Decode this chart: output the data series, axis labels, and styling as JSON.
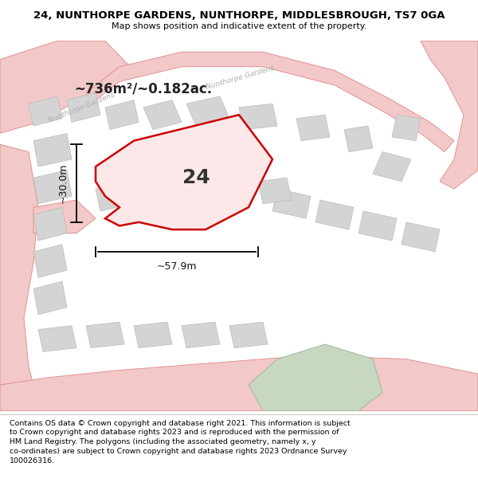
{
  "title": "24, NUNTHORPE GARDENS, NUNTHORPE, MIDDLESBROUGH, TS7 0GA",
  "subtitle": "Map shows position and indicative extent of the property.",
  "footer": "Contains OS data © Crown copyright and database right 2021. This information is subject\nto Crown copyright and database rights 2023 and is reproduced with the permission of\nHM Land Registry. The polygons (including the associated geometry, namely x, y\nco-ordinates) are subject to Crown copyright and database rights 2023 Ordnance Survey\n100026316.",
  "map_bg": "#f7f7f7",
  "road_fill": "#f2c8c8",
  "road_edge": "#e08888",
  "building_fill": "#d4d4d4",
  "building_edge": "#bbbbbb",
  "prop_fill": "#fce8e8",
  "prop_edge": "#cc0000",
  "green_fill": "#c8d8c0",
  "green_edge": "#a0b898",
  "area_text": "~736m²/~0.182ac.",
  "label_24": "24",
  "dim_width": "~57.9m",
  "dim_height": "~30.0m",
  "street1": "Nunthorpe Gardens",
  "street2": "Nunthorpe Gardens",
  "title_fontsize": 9.5,
  "subtitle_fontsize": 8,
  "footer_fontsize": 6.8
}
